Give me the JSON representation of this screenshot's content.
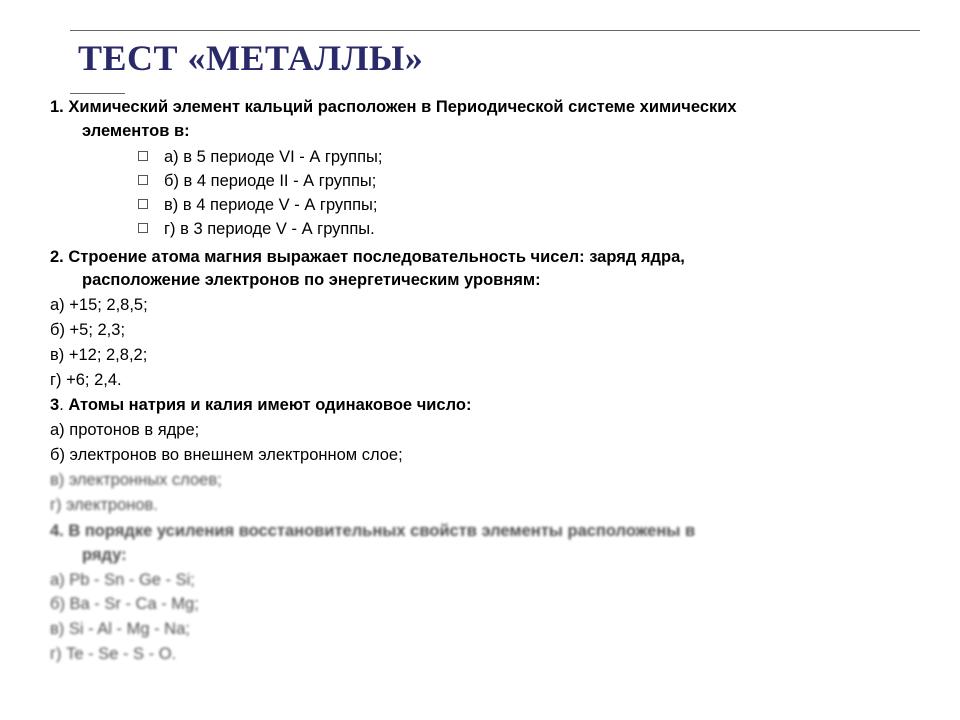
{
  "title": "ТЕСТ «МЕТАЛЛЫ»",
  "colors": {
    "title": "#2a2a6a",
    "text": "#000000",
    "rule": "#666666",
    "bullet_border": "#555555",
    "background": "#ffffff"
  },
  "typography": {
    "title_family": "Times New Roman",
    "title_size_pt": 27,
    "body_family": "Arial",
    "body_size_pt": 12,
    "line_height": 1.45
  },
  "q1": {
    "num": "1.",
    "stem_a": "Химический элемент кальций расположен в Периодической системе химических",
    "stem_b": "элементов в:",
    "opts": {
      "a": "а) в 5 периоде VI - А группы;",
      "b": "б) в 4 периоде II - А группы;",
      "c": "в) в 4 периоде V - А группы;",
      "d": "г) в 3 периоде V - А группы."
    }
  },
  "q2": {
    "num": "2.",
    "stem_a": "Строение атома магния выражает последовательность чисел: заряд ядра,",
    "stem_b": "расположение электронов по энергетическим уровням:",
    "opts": {
      "a": "а) +15; 2,8,5;",
      "b": "б) +5; 2,3;",
      "c": "в) +12; 2,8,2;",
      "d": "г) +6; 2,4."
    }
  },
  "q3": {
    "num_and_stem": "3. Атомы натрия и калия имеют одинаковое число:",
    "opts": {
      "a": "а) протонов в ядре;",
      "b": "б) электронов во внешнем электронном слое;",
      "c": "в) электронных слоев;",
      "d": "г) электронов."
    }
  },
  "q4": {
    "stem_a": "4. В порядке усиления восстановительных свойств элементы расположены в",
    "stem_b": "ряду:",
    "opts": {
      "a": "а) Pb - Sn - Ge - Si;",
      "b": "б) Ba - Sr - Ca - Mg;",
      "c": "в) Si - Al - Mg - Na;",
      "d": "г) Te - Se - S - O."
    }
  }
}
